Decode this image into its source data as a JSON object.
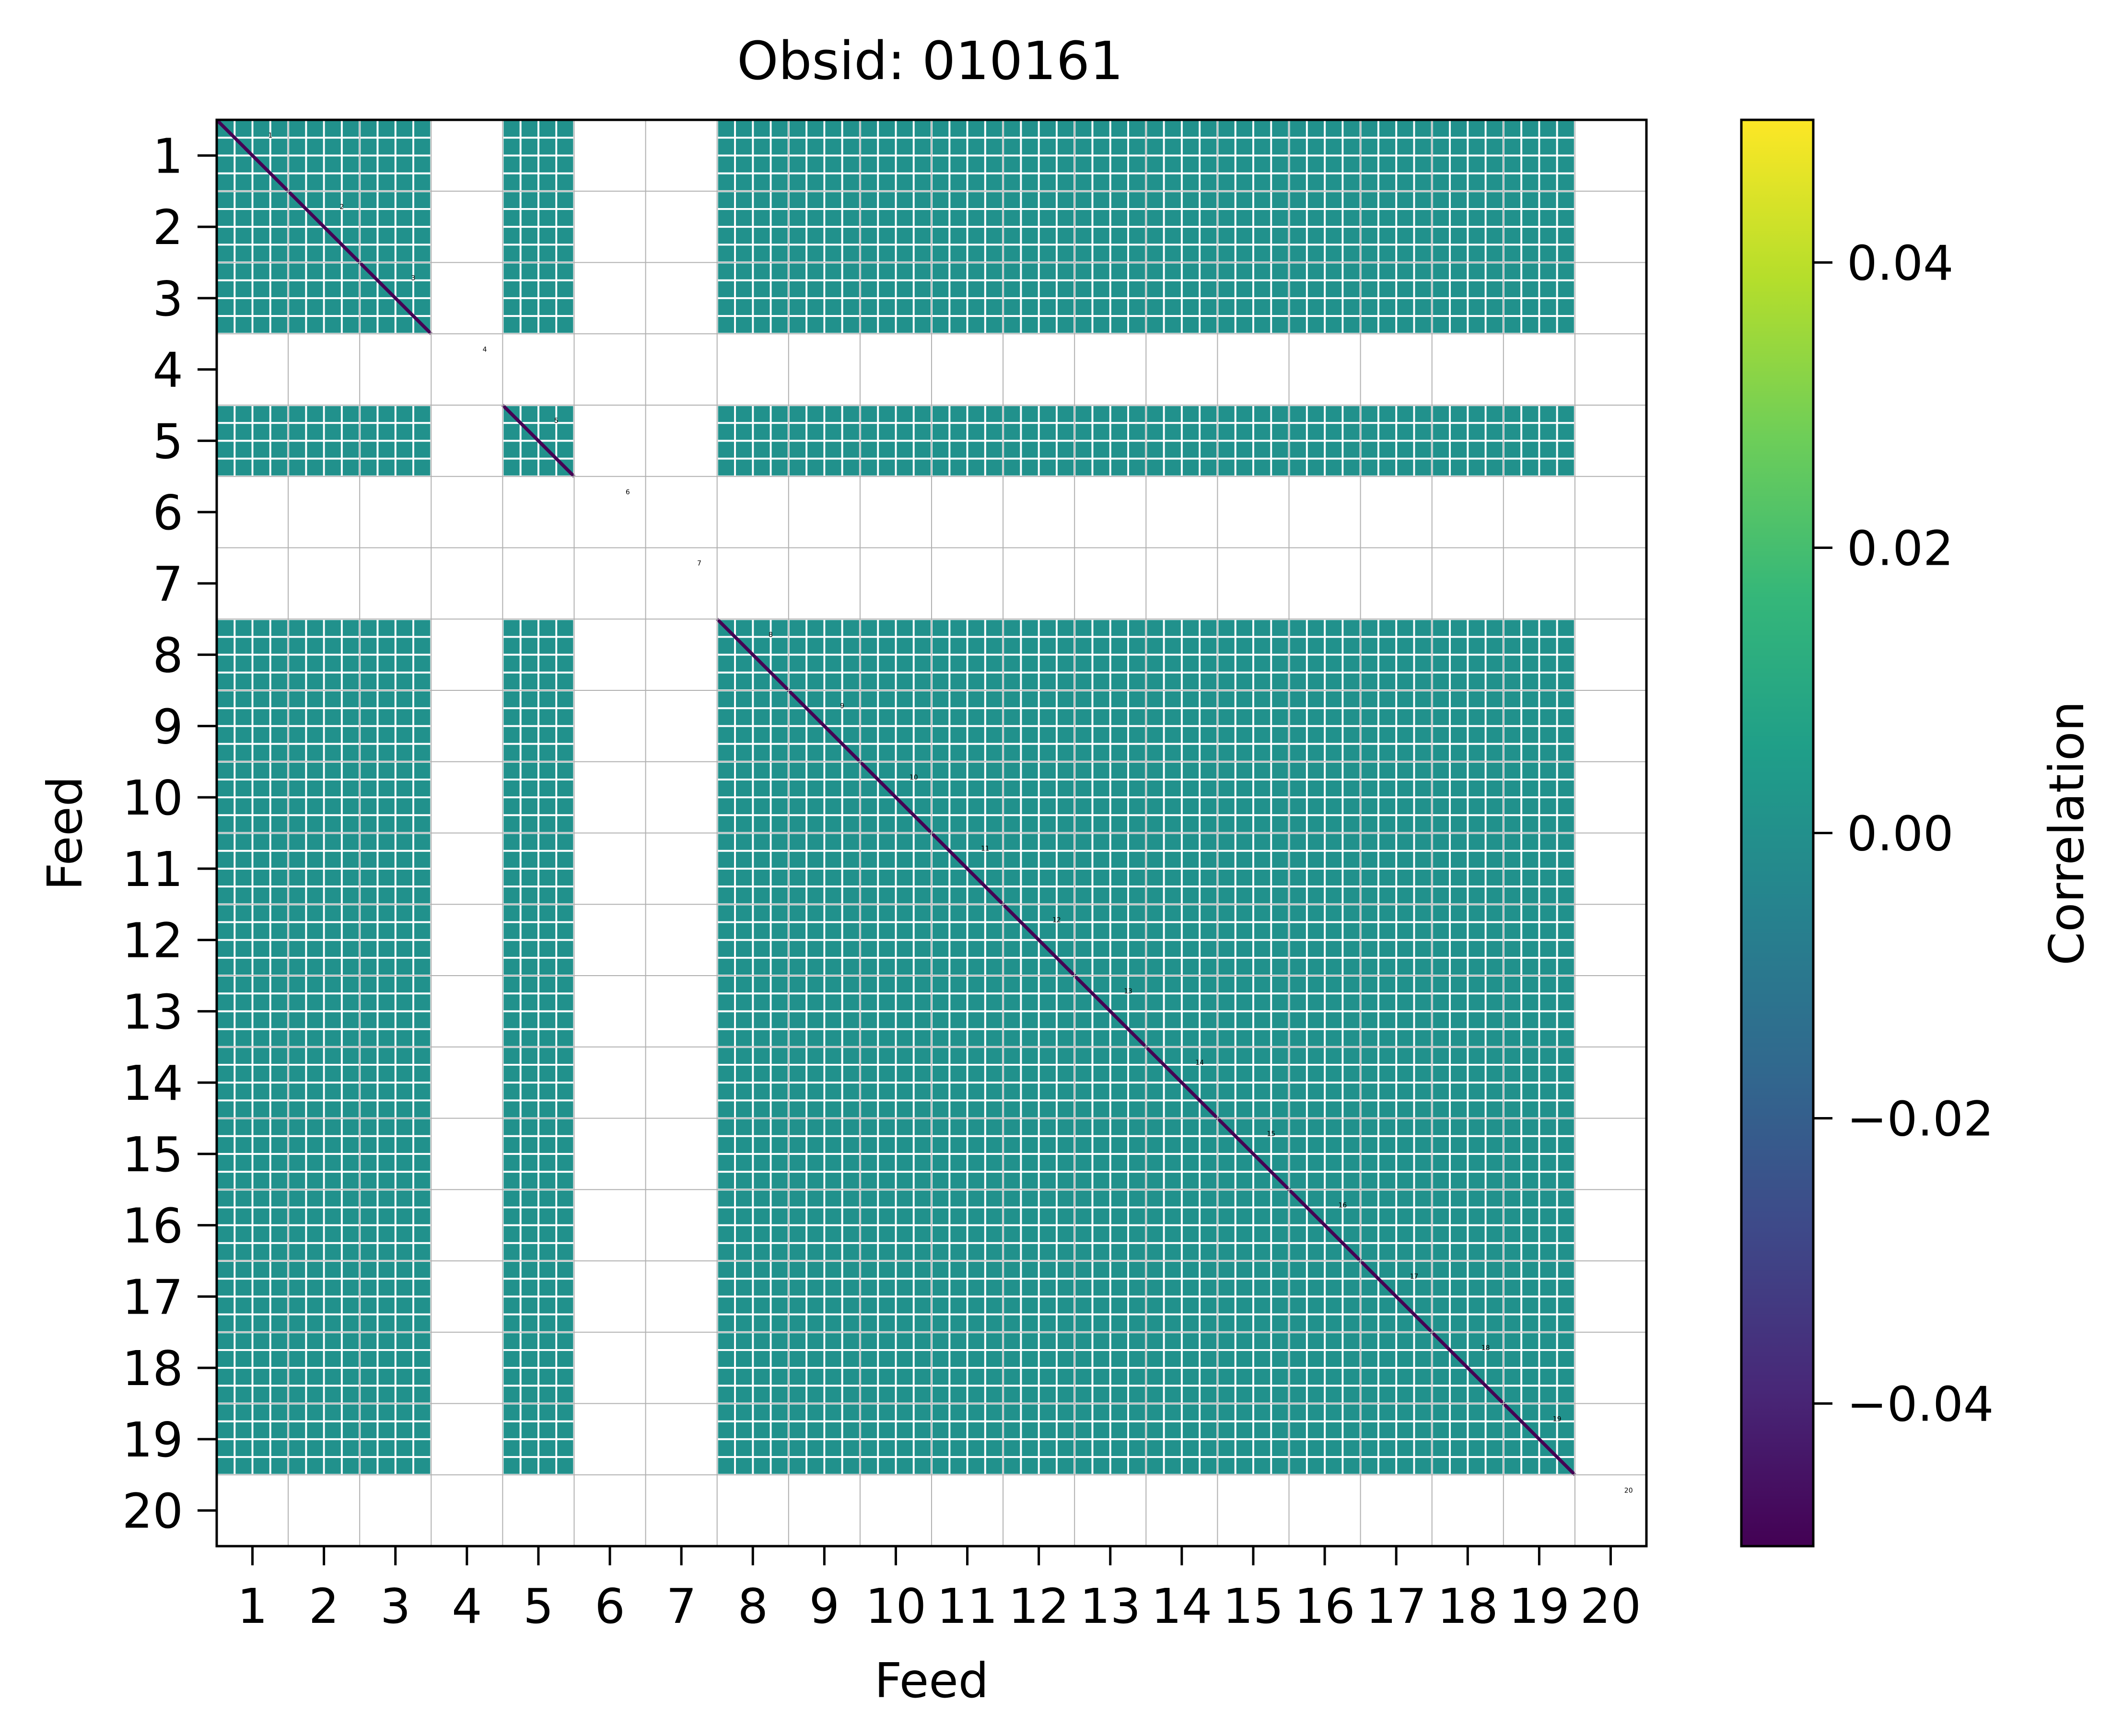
{
  "chart_data": {
    "type": "heatmap",
    "title": "Obsid: 010161",
    "xlabel": "Feed",
    "ylabel": "Feed",
    "x_ticks": [
      "1",
      "2",
      "3",
      "4",
      "5",
      "6",
      "7",
      "8",
      "9",
      "10",
      "11",
      "12",
      "13",
      "14",
      "15",
      "16",
      "17",
      "18",
      "19",
      "20"
    ],
    "y_ticks": [
      "1",
      "2",
      "3",
      "4",
      "5",
      "6",
      "7",
      "8",
      "9",
      "10",
      "11",
      "12",
      "13",
      "14",
      "15",
      "16",
      "17",
      "18",
      "19",
      "20"
    ],
    "feeds": [
      1,
      2,
      3,
      4,
      5,
      6,
      7,
      8,
      9,
      10,
      11,
      12,
      13,
      14,
      15,
      16,
      17,
      18,
      19,
      20
    ],
    "feed_annotations": [
      "1",
      "2",
      "3",
      "4",
      "5",
      "6",
      "7",
      "8",
      "9",
      "10",
      "11",
      "12",
      "13",
      "14",
      "15",
      "16",
      "17",
      "18",
      "19",
      "20"
    ],
    "feed_has_data": [
      true,
      true,
      true,
      false,
      true,
      false,
      false,
      true,
      true,
      true,
      true,
      true,
      true,
      true,
      true,
      true,
      true,
      true,
      true,
      false
    ],
    "bands_per_feed": 4,
    "fill_value": 0.0,
    "diagonal_value": -0.05,
    "grid": true,
    "colorbar": {
      "label": "Correlation",
      "colormap": "viridis",
      "vmin": -0.05,
      "vmax": 0.05,
      "ticks": [
        -0.04,
        -0.02,
        0.0,
        0.02,
        0.04
      ],
      "tick_labels": [
        "−0.04",
        "−0.02",
        "0.00",
        "0.02",
        "0.04"
      ]
    },
    "colors": {
      "cell": "#21918c",
      "diagonal": "#440154",
      "viridis_stops": [
        "#440154",
        "#482878",
        "#3e4989",
        "#31688e",
        "#26828e",
        "#1f9e89",
        "#35b779",
        "#6ece58",
        "#b5de2b",
        "#fde725"
      ]
    }
  }
}
